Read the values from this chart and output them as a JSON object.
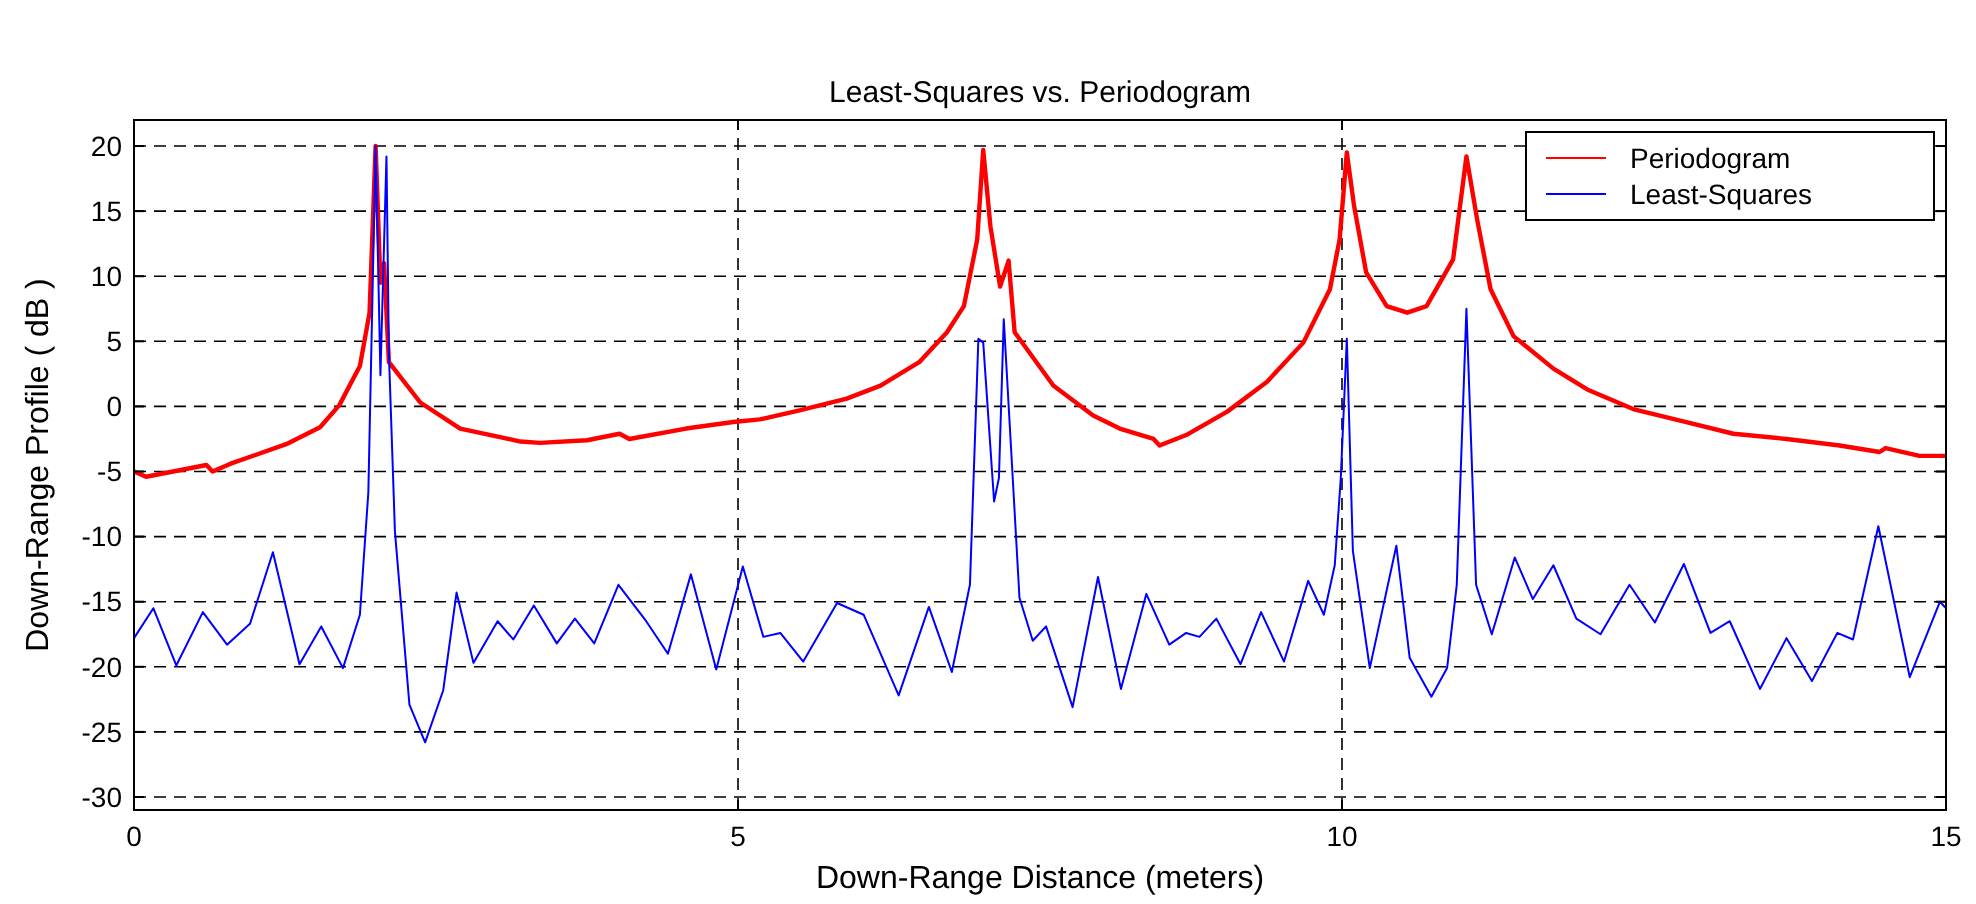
{
  "chart_data": {
    "type": "line",
    "title": "Least-Squares vs. Periodogram",
    "xlabel": "Down-Range Distance (meters)",
    "ylabel": "Down-Range Profile  ( dB )",
    "xlim": [
      0,
      15
    ],
    "xticks": [
      0,
      5,
      10,
      15
    ],
    "ylim": [
      -31,
      22
    ],
    "yticks": [
      -30,
      -25,
      -20,
      -15,
      -10,
      -5,
      0,
      5,
      10,
      15,
      20
    ],
    "grid": true,
    "legend": "top right",
    "marker": "none",
    "line_style": "solid",
    "series": [
      {
        "name": "Periodogram",
        "color": "#ff0000",
        "x": [
          0,
          0.1,
          0.6,
          0.65,
          0.8,
          1.26,
          1.54,
          1.7,
          1.87,
          1.95,
          2.0,
          2.04,
          2.07,
          2.11,
          2.37,
          2.7,
          3.2,
          3.36,
          3.75,
          4.02,
          4.1,
          4.57,
          4.96,
          5.18,
          5.51,
          5.9,
          6.18,
          6.5,
          6.73,
          6.87,
          6.98,
          7.03,
          7.09,
          7.17,
          7.24,
          7.29,
          7.61,
          7.94,
          8.16,
          8.44,
          8.49,
          8.71,
          9.05,
          9.38,
          9.68,
          9.9,
          9.98,
          10.04,
          10.1,
          10.2,
          10.37,
          10.54,
          10.7,
          10.92,
          11.03,
          11.12,
          11.23,
          11.42,
          11.75,
          12.03,
          12.41,
          12.85,
          13.24,
          13.68,
          14.12,
          14.45,
          14.5,
          14.78,
          15
        ],
        "values": [
          -5.0,
          -5.4,
          -4.5,
          -5.0,
          -4.4,
          -2.9,
          -1.6,
          0.1,
          3.1,
          7.2,
          20,
          9.5,
          11,
          3.4,
          0.3,
          -1.7,
          -2.7,
          -2.8,
          -2.6,
          -2.1,
          -2.5,
          -1.7,
          -1.2,
          -1.0,
          -0.3,
          0.6,
          1.6,
          3.4,
          5.7,
          7.7,
          12.8,
          19.7,
          13.8,
          9.2,
          11.2,
          5.7,
          1.6,
          -0.7,
          -1.7,
          -2.5,
          -3.0,
          -2.2,
          -0.4,
          1.9,
          4.9,
          9.0,
          12.8,
          19.5,
          15.4,
          10.3,
          7.7,
          7.2,
          7.7,
          11.3,
          19.2,
          14.3,
          9.0,
          5.4,
          2.9,
          1.3,
          -0.2,
          -1.2,
          -2.1,
          -2.5,
          -3.0,
          -3.5,
          -3.2,
          -3.8,
          -3.8
        ]
      },
      {
        "name": "Least-Squares",
        "color": "#0000ff",
        "x": [
          0,
          0.16,
          0.35,
          0.57,
          0.77,
          0.96,
          1.15,
          1.37,
          1.55,
          1.73,
          1.87,
          1.94,
          2.0,
          2.04,
          2.09,
          2.11,
          2.16,
          2.28,
          2.41,
          2.56,
          2.67,
          2.81,
          3.01,
          3.14,
          3.31,
          3.5,
          3.65,
          3.81,
          4.01,
          4.24,
          4.42,
          4.61,
          4.82,
          5.04,
          5.21,
          5.35,
          5.54,
          5.82,
          6.04,
          6.33,
          6.58,
          6.77,
          6.92,
          6.99,
          7.03,
          7.12,
          7.16,
          7.2,
          7.25,
          7.33,
          7.44,
          7.55,
          7.77,
          7.98,
          8.17,
          8.38,
          8.57,
          8.71,
          8.82,
          8.96,
          9.16,
          9.33,
          9.52,
          9.72,
          9.85,
          9.94,
          9.99,
          10.04,
          10.09,
          10.23,
          10.45,
          10.56,
          10.74,
          10.87,
          10.95,
          11.03,
          11.11,
          11.24,
          11.43,
          11.58,
          11.75,
          11.94,
          12.14,
          12.38,
          12.59,
          12.83,
          13.05,
          13.21,
          13.46,
          13.68,
          13.89,
          14.1,
          14.23,
          14.44,
          14.7,
          14.95,
          15
        ],
        "values": [
          -17.8,
          -15.5,
          -19.9,
          -15.8,
          -18.3,
          -16.7,
          -11.2,
          -19.8,
          -16.9,
          -20.1,
          -16.0,
          -6.6,
          20,
          2.4,
          19.2,
          4.1,
          -9.6,
          -22.9,
          -25.8,
          -21.8,
          -14.3,
          -19.7,
          -16.5,
          -17.9,
          -15.3,
          -18.2,
          -16.3,
          -18.2,
          -13.7,
          -16.5,
          -19.0,
          -12.9,
          -20.2,
          -12.3,
          -17.7,
          -17.4,
          -19.6,
          -15.1,
          -16.0,
          -22.2,
          -15.4,
          -20.4,
          -13.7,
          5.2,
          4.9,
          -7.3,
          -5.5,
          6.7,
          -1.5,
          -14.7,
          -18.0,
          -16.9,
          -23.1,
          -13.1,
          -21.7,
          -14.4,
          -18.3,
          -17.4,
          -17.7,
          -16.3,
          -19.8,
          -15.8,
          -19.6,
          -13.4,
          -16.0,
          -12.2,
          -5.5,
          5.2,
          -11.1,
          -20.1,
          -10.7,
          -19.3,
          -22.3,
          -20.1,
          -13.7,
          7.5,
          -13.7,
          -17.5,
          -11.6,
          -14.8,
          -12.2,
          -16.3,
          -17.5,
          -13.7,
          -16.6,
          -12.1,
          -17.4,
          -16.5,
          -21.7,
          -17.8,
          -21.1,
          -17.4,
          -17.9,
          -9.2,
          -20.8,
          -15.0,
          -15.5
        ]
      }
    ]
  }
}
